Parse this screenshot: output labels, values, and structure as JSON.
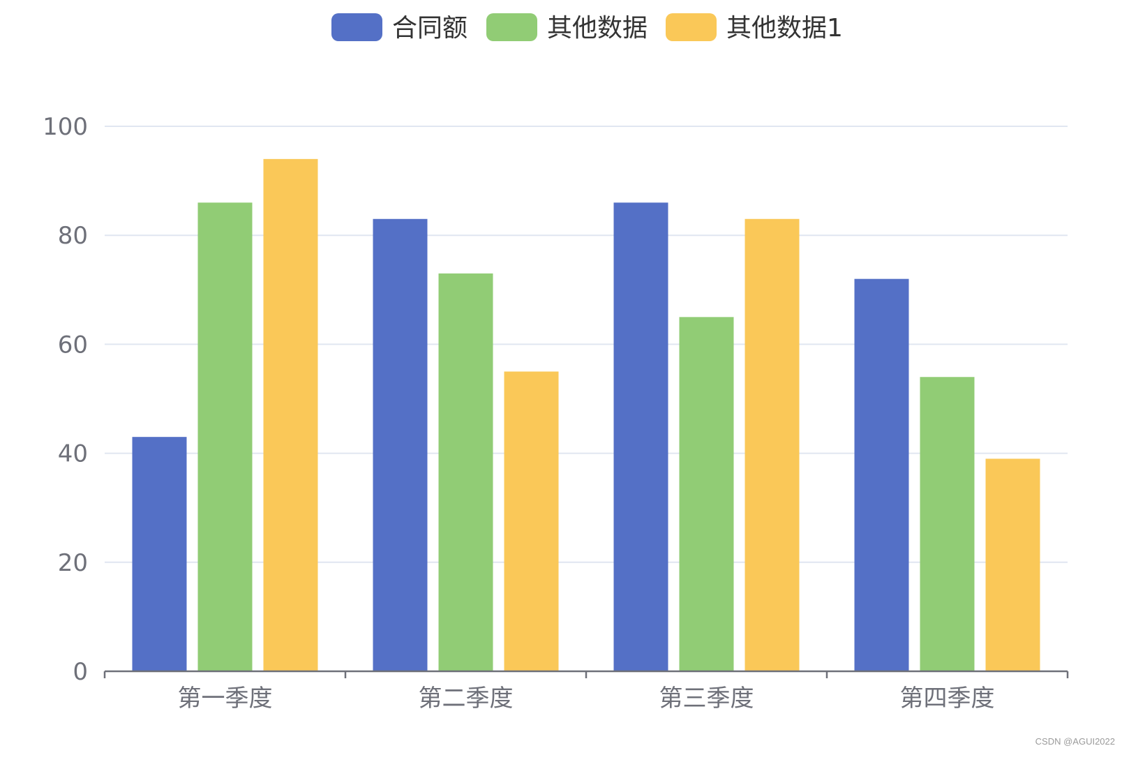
{
  "chart_data": {
    "type": "bar",
    "categories": [
      "第一季度",
      "第二季度",
      "第三季度",
      "第四季度"
    ],
    "series": [
      {
        "name": "合同额",
        "color": "#5470c6",
        "values": [
          43,
          83,
          86,
          72
        ]
      },
      {
        "name": "其他数据",
        "color": "#91cc75",
        "values": [
          86,
          73,
          65,
          54
        ]
      },
      {
        "name": "其他数据1",
        "color": "#fac858",
        "values": [
          94,
          55,
          83,
          39
        ]
      }
    ],
    "ylim": [
      0,
      100
    ],
    "yticks": [
      0,
      20,
      40,
      60,
      80,
      100
    ],
    "grid": true,
    "legend_position": "top-center"
  },
  "watermark": "CSDN @AGUI2022"
}
